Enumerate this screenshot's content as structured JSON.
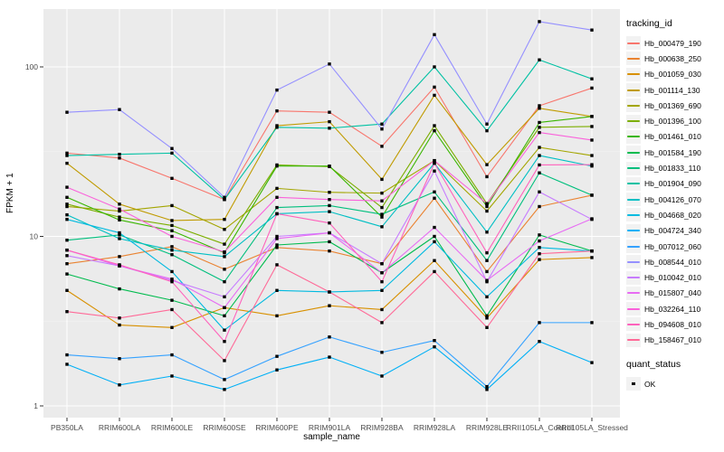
{
  "figure": {
    "ylabel": "FPKM + 1",
    "xlabel": "sample_name",
    "tracking_legend_title": "tracking_id",
    "quant_legend_title": "quant_status",
    "quant_legend_item": "OK"
  },
  "chart_data": {
    "type": "line",
    "title": "",
    "xlabel": "sample_name",
    "ylabel": "FPKM + 1",
    "y_scale": "log10",
    "y_ticks": [
      1,
      10,
      100
    ],
    "ylim": [
      1,
      220
    ],
    "grid": true,
    "panel_bg": "#EBEBEB",
    "grid_color": "#FFFFFF",
    "marker": "black-square",
    "legend_title": "tracking_id",
    "legend_position": "right",
    "quant_status": {
      "title": "quant_status",
      "items": [
        {
          "label": "OK",
          "marker": "black-square"
        }
      ]
    },
    "categories": [
      "PB350LA",
      "RRIM600LA",
      "RRIM600LE",
      "RRIM600SE",
      "RRIM600PE",
      "RRIM901LA",
      "RRIM928BA",
      "RRIM928LA",
      "RRIM928LE",
      "RRII105LA_Control",
      "RRII105LA_Stressed"
    ],
    "series": [
      {
        "name": "Hb_000479_190",
        "color": "#F8766D",
        "values": [
          31,
          29,
          22,
          16.5,
          55,
          54,
          34,
          76,
          22.5,
          59,
          75
        ]
      },
      {
        "name": "Hb_000638_250",
        "color": "#EA8331",
        "values": [
          6.9,
          7.6,
          8.7,
          6.4,
          8.6,
          8.2,
          6.9,
          16.8,
          6.2,
          15,
          17.5
        ]
      },
      {
        "name": "Hb_001059_030",
        "color": "#D89000",
        "values": [
          4.8,
          3.0,
          2.9,
          3.8,
          3.4,
          3.9,
          3.7,
          7.2,
          3.3,
          7.3,
          7.5
        ]
      },
      {
        "name": "Hb_001114_130",
        "color": "#C09B00",
        "values": [
          27,
          15.5,
          12.4,
          12.6,
          45,
          47.5,
          21.7,
          68,
          26.5,
          57,
          51
        ]
      },
      {
        "name": "Hb_001369_690",
        "color": "#A3A500",
        "values": [
          15,
          14.1,
          15.2,
          11,
          19.2,
          18.2,
          18,
          28,
          14.1,
          33.5,
          30
        ]
      },
      {
        "name": "Hb_001396_100",
        "color": "#7CAE00",
        "values": [
          15.5,
          13,
          11.6,
          9,
          26.4,
          25.8,
          14.8,
          45,
          15.6,
          44,
          44.5
        ]
      },
      {
        "name": "Hb_001461_010",
        "color": "#39B600",
        "values": [
          17,
          12.5,
          10.8,
          8,
          26,
          26,
          13,
          42,
          15,
          47,
          51
        ]
      },
      {
        "name": "Hb_001584_190",
        "color": "#00BB4E",
        "values": [
          6.0,
          4.9,
          4.2,
          3.4,
          8.9,
          9.3,
          6.1,
          10,
          3.4,
          10.2,
          8.2
        ]
      },
      {
        "name": "Hb_001833_110",
        "color": "#00BF7D",
        "values": [
          9.5,
          10.2,
          7.8,
          5.4,
          14.8,
          15.2,
          13.5,
          18.3,
          7.2,
          23.7,
          17.5
        ]
      },
      {
        "name": "Hb_001904_090",
        "color": "#00C1A3",
        "values": [
          30,
          30.5,
          31,
          16.5,
          44,
          43.5,
          46,
          100,
          42,
          110,
          85
        ]
      },
      {
        "name": "Hb_004126_070",
        "color": "#00BFC4",
        "values": [
          13.4,
          9.7,
          8.3,
          7.6,
          13.6,
          14,
          11.4,
          27,
          10.6,
          30,
          26
        ]
      },
      {
        "name": "Hb_004668_020",
        "color": "#00BAE0",
        "values": [
          12.6,
          10.5,
          6.2,
          2.8,
          4.8,
          4.7,
          4.8,
          9.3,
          4.4,
          8.6,
          8.2
        ]
      },
      {
        "name": "Hb_004724_340",
        "color": "#00B0F6",
        "values": [
          1.76,
          1.33,
          1.5,
          1.25,
          1.63,
          1.94,
          1.5,
          2.23,
          1.25,
          2.4,
          1.8
        ]
      },
      {
        "name": "Hb_007012_060",
        "color": "#35A2FF",
        "values": [
          2.0,
          1.9,
          2.0,
          1.43,
          1.96,
          2.55,
          2.07,
          2.43,
          1.3,
          3.1,
          3.1
        ]
      },
      {
        "name": "Hb_008544_010",
        "color": "#9590FF",
        "values": [
          54,
          56,
          33,
          17,
          73,
          104,
          43,
          155,
          46,
          185,
          165
        ]
      },
      {
        "name": "Hb_010042_010",
        "color": "#C77CFF",
        "values": [
          7.7,
          6.7,
          5.5,
          4.4,
          10,
          10.5,
          6.9,
          24.3,
          5.4,
          18.3,
          12.6
        ]
      },
      {
        "name": "Hb_015807_040",
        "color": "#E76BF3",
        "values": [
          8.3,
          6.7,
          5.6,
          3.8,
          9.7,
          10.5,
          6.1,
          11.3,
          5.5,
          9.4,
          12.7
        ]
      },
      {
        "name": "Hb_032264_110",
        "color": "#FA62DB",
        "values": [
          19.5,
          14.5,
          10,
          8.1,
          17,
          16.5,
          16.2,
          28,
          15.6,
          41,
          37
        ]
      },
      {
        "name": "Hb_094608_010",
        "color": "#FF62BC",
        "values": [
          8.3,
          6.8,
          5.4,
          2.4,
          13.6,
          12,
          5.4,
          27,
          8.0,
          26.4,
          26.5
        ]
      },
      {
        "name": "Hb_158467_010",
        "color": "#FF6A98",
        "values": [
          3.6,
          3.3,
          3.7,
          1.85,
          6.8,
          4.7,
          3.1,
          6.2,
          2.9,
          7.9,
          8.2
        ]
      }
    ]
  }
}
